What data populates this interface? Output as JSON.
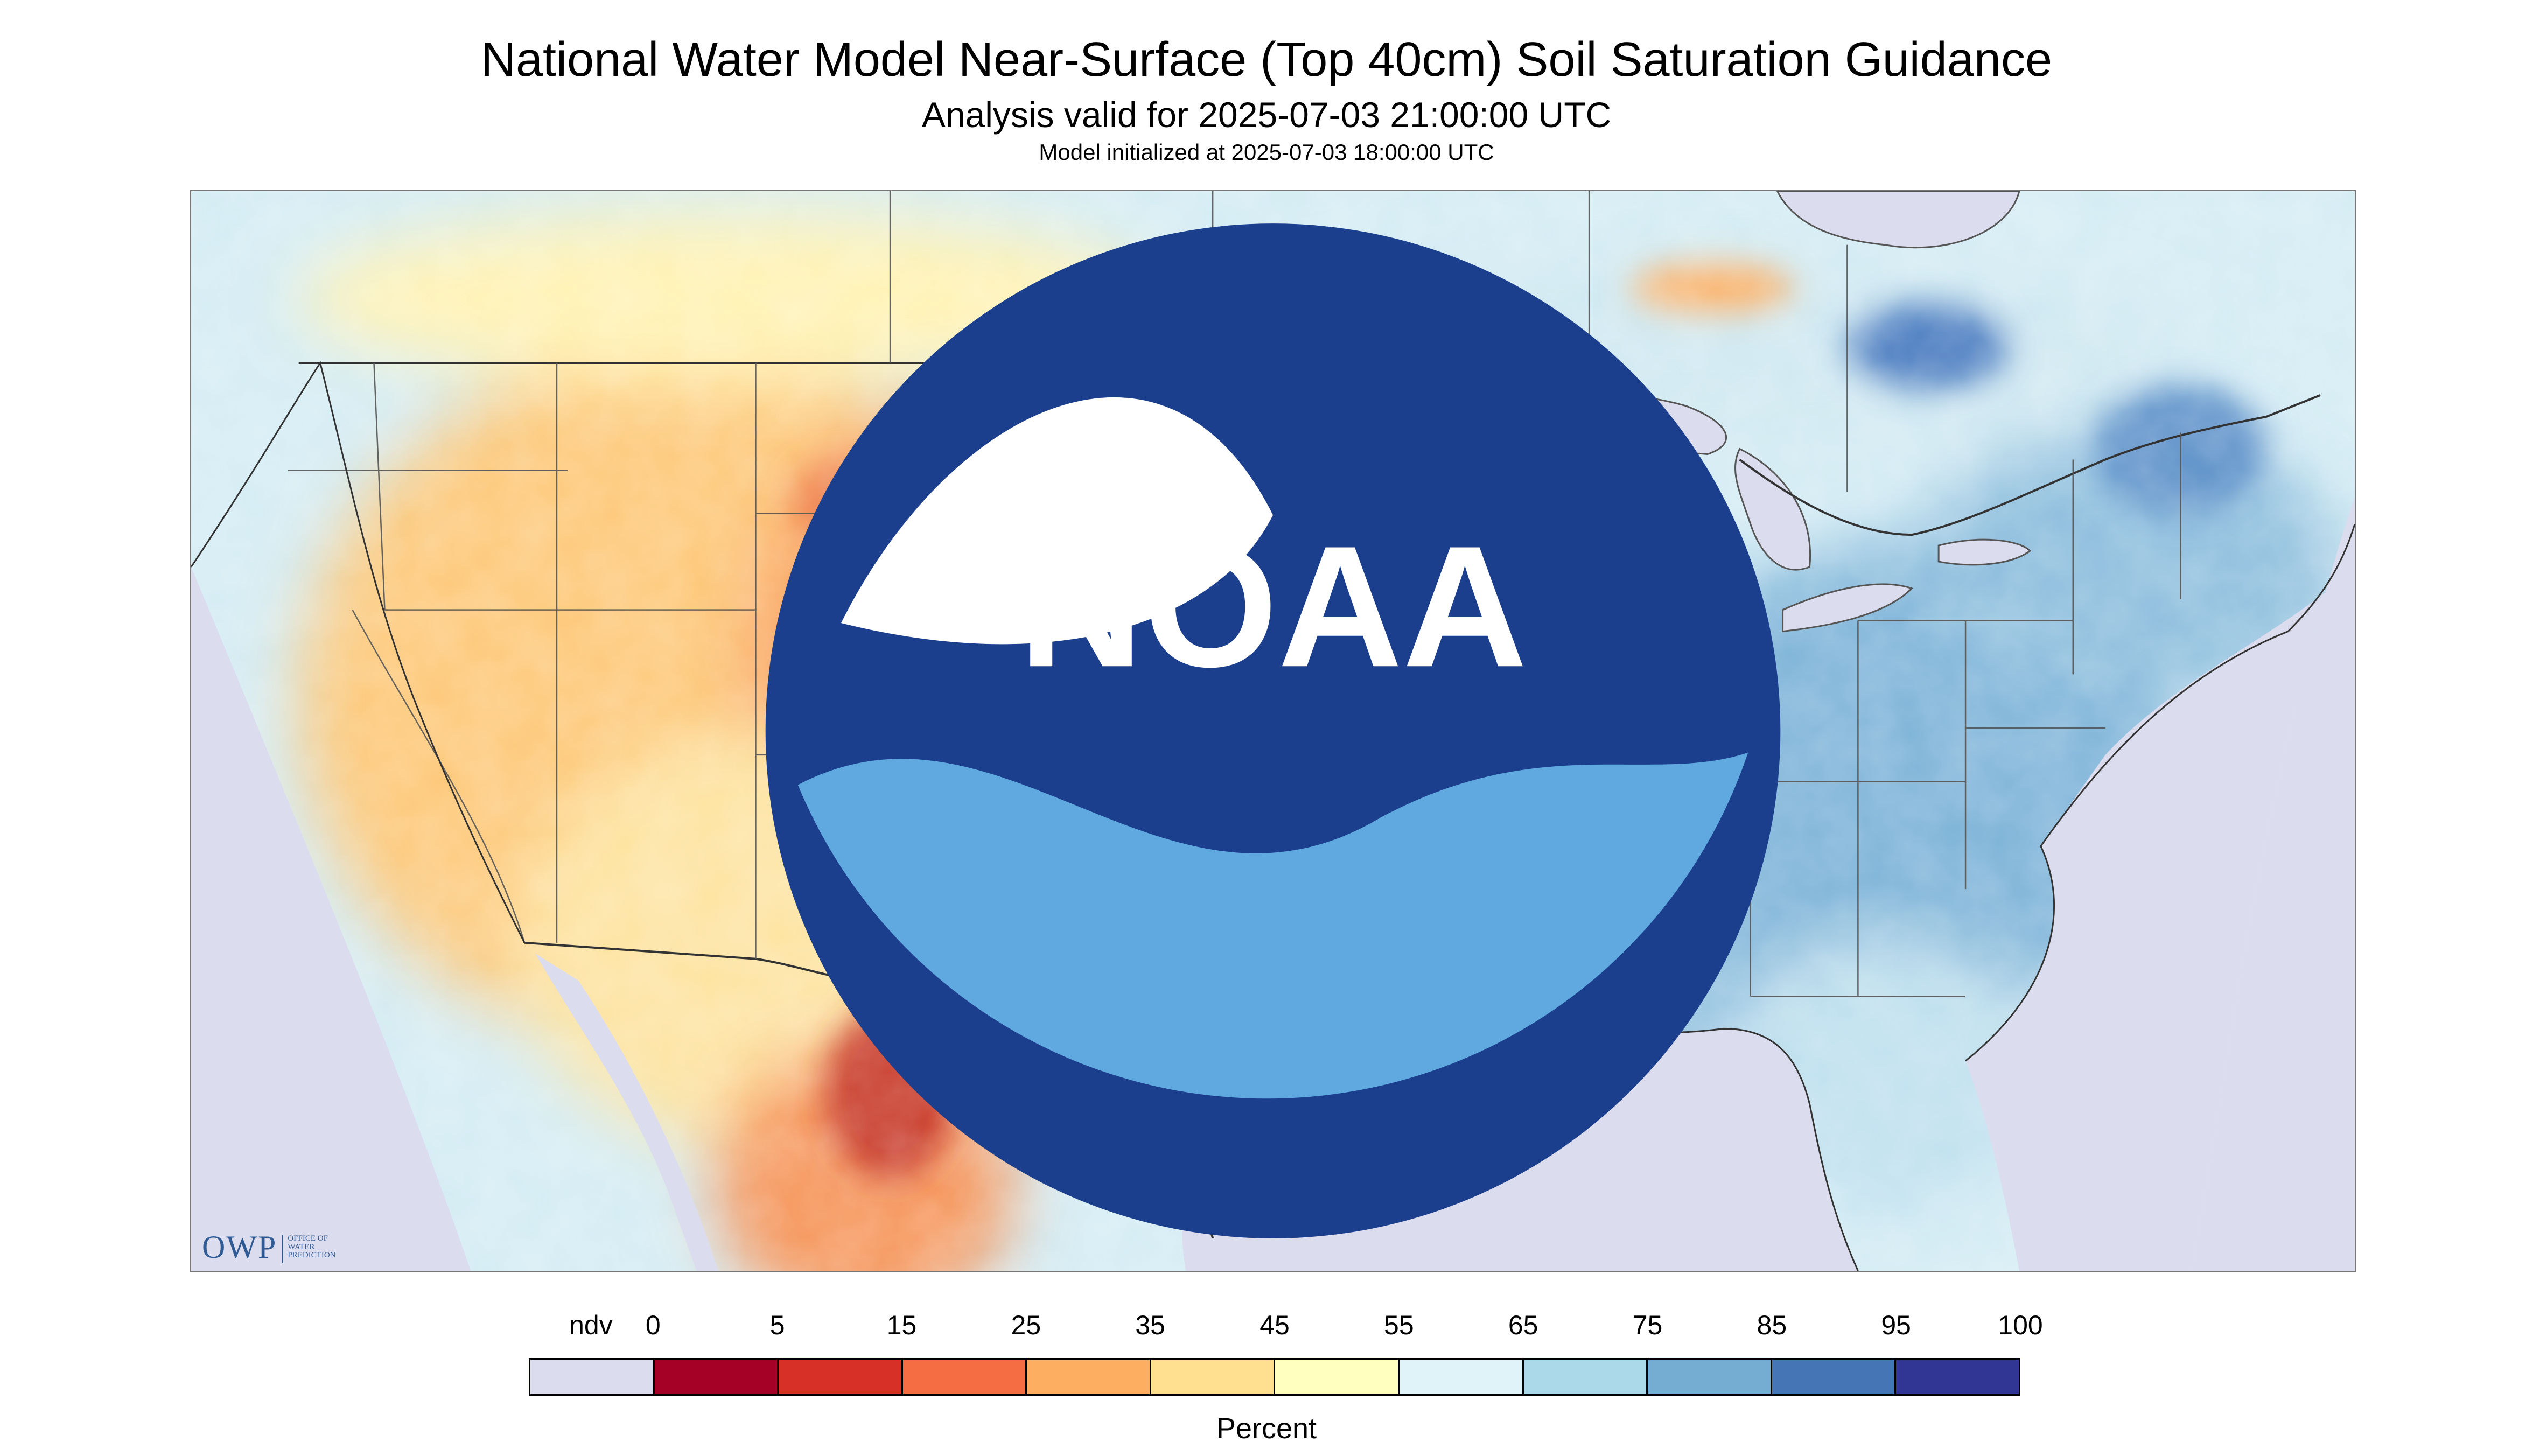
{
  "title": "National Water Model Near-Surface (Top 40cm) Soil Saturation Guidance",
  "subtitle": "Analysis valid for 2025-07-03 21:00:00 UTC",
  "model_init": "Model initialized at 2025-07-03 18:00:00 UTC",
  "map": {
    "region": "CONUS",
    "projection": "lambert-conformal",
    "no_data_color": "#dcdcef",
    "boundary_color": "#555555"
  },
  "legend": {
    "labels": [
      "ndv",
      "0",
      "5",
      "15",
      "25",
      "35",
      "45",
      "55",
      "65",
      "75",
      "85",
      "95",
      "100"
    ],
    "colors": [
      "#dcdcef",
      "#a50026",
      "#d73027",
      "#f46d43",
      "#fdae61",
      "#fee090",
      "#ffffbf",
      "#e0f3f8",
      "#abd9e9",
      "#74add1",
      "#4575b4",
      "#313695"
    ],
    "unit": "Percent"
  },
  "logos": {
    "owp_mark": "OWP",
    "owp_lines": [
      "OFFICE OF",
      "WATER",
      "PREDICTION"
    ],
    "noaa_text": "NOAA"
  }
}
